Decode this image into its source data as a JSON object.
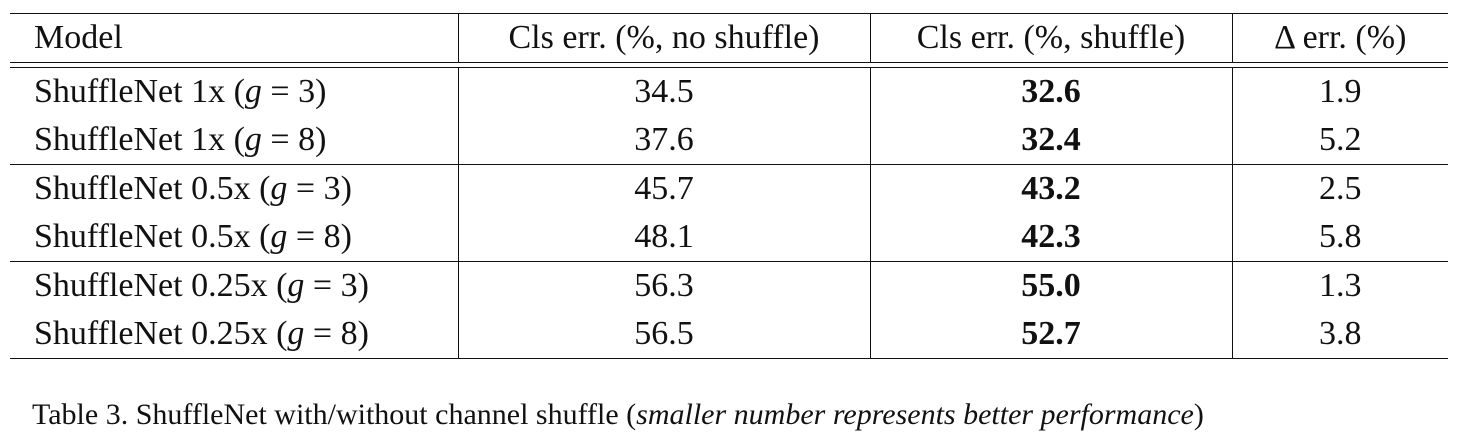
{
  "table": {
    "headers": [
      "Model",
      "Cls err. (%, no shuffle)",
      "Cls err. (%, shuffle)",
      "Δ err. (%)"
    ],
    "groups": [
      {
        "rows": [
          {
            "model_prefix": "ShuffleNet 1x (",
            "model_var": "g",
            "model_suffix": " = 3)",
            "no_shuffle": "34.5",
            "shuffle": "32.6",
            "delta": "1.9"
          },
          {
            "model_prefix": "ShuffleNet 1x (",
            "model_var": "g",
            "model_suffix": " = 8)",
            "no_shuffle": "37.6",
            "shuffle": "32.4",
            "delta": "5.2"
          }
        ]
      },
      {
        "rows": [
          {
            "model_prefix": "ShuffleNet 0.5x (",
            "model_var": "g",
            "model_suffix": " = 3)",
            "no_shuffle": "45.7",
            "shuffle": "43.2",
            "delta": "2.5"
          },
          {
            "model_prefix": "ShuffleNet 0.5x (",
            "model_var": "g",
            "model_suffix": " = 8)",
            "no_shuffle": "48.1",
            "shuffle": "42.3",
            "delta": "5.8"
          }
        ]
      },
      {
        "rows": [
          {
            "model_prefix": "ShuffleNet 0.25x (",
            "model_var": "g",
            "model_suffix": " = 3)",
            "no_shuffle": "56.3",
            "shuffle": "55.0",
            "delta": "1.3"
          },
          {
            "model_prefix": "ShuffleNet 0.25x (",
            "model_var": "g",
            "model_suffix": " = 8)",
            "no_shuffle": "56.5",
            "shuffle": "52.7",
            "delta": "3.8"
          }
        ]
      }
    ]
  },
  "caption": {
    "prefix": "Table 3. ShuffleNet with/without channel shuffle (",
    "italic": "smaller number represents better performance",
    "suffix": ")"
  }
}
